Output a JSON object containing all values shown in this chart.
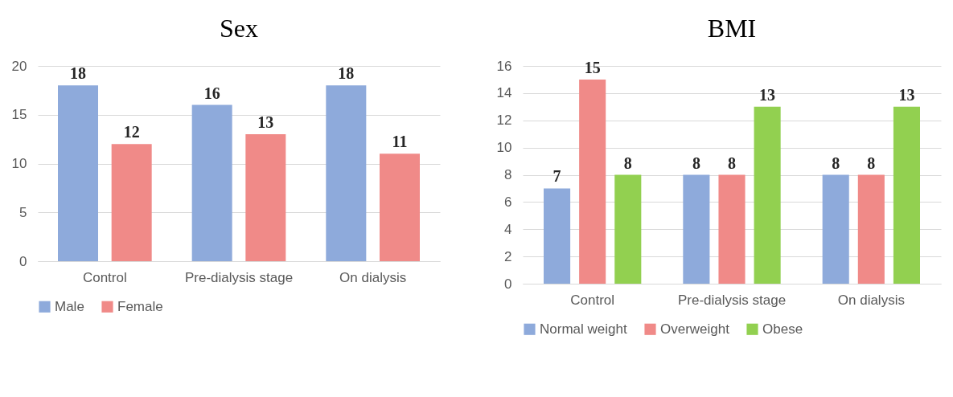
{
  "chart_data": [
    {
      "type": "bar",
      "title": "Sex",
      "categories": [
        "Control",
        "Pre-dialysis stage",
        "On dialysis"
      ],
      "series": [
        {
          "name": "Male",
          "color": "#8eaadb",
          "values": [
            18,
            16,
            18
          ]
        },
        {
          "name": "Female",
          "color": "#f08a88",
          "values": [
            12,
            13,
            11
          ]
        }
      ],
      "ylim": [
        0,
        20
      ],
      "yticks": [
        0,
        5,
        10,
        15,
        20
      ],
      "grid": "y",
      "legend": "bottom",
      "data_labels": true
    },
    {
      "type": "bar",
      "title": "BMI",
      "categories": [
        "Control",
        "Pre-dialysis stage",
        "On dialysis"
      ],
      "series": [
        {
          "name": "Normal weight",
          "color": "#8eaadb",
          "values": [
            7,
            8,
            8
          ]
        },
        {
          "name": "Overweight",
          "color": "#f08a88",
          "values": [
            15,
            8,
            8
          ]
        },
        {
          "name": "Obese",
          "color": "#92d050",
          "values": [
            8,
            13,
            13
          ]
        }
      ],
      "ylim": [
        0,
        16
      ],
      "yticks": [
        0,
        2,
        4,
        6,
        8,
        10,
        12,
        14,
        16
      ],
      "grid": "y",
      "legend": "bottom",
      "data_labels": true
    }
  ]
}
